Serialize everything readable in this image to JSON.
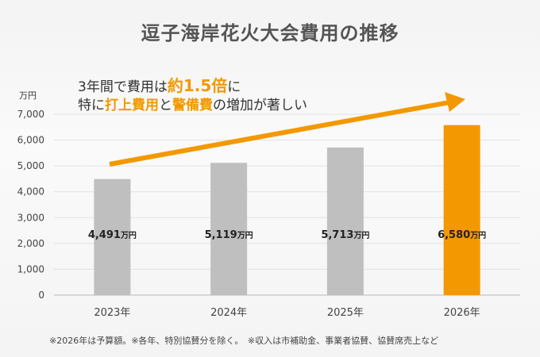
{
  "chart_data": {
    "type": "bar",
    "title": "逗子海岸花火大会費用の推移",
    "ylabel": "万円",
    "categories": [
      "2023年",
      "2024年",
      "2025年",
      "2026年"
    ],
    "values": [
      4491,
      5119,
      5713,
      6580
    ],
    "data_labels": [
      "4,491",
      "5,119",
      "5,713",
      "6,580"
    ],
    "data_label_unit": "万円",
    "ylim": [
      0,
      7000
    ],
    "yticks": [
      0,
      1000,
      2000,
      3000,
      4000,
      5000,
      6000,
      7000
    ],
    "ytick_labels": [
      "0",
      "1,000",
      "2,000",
      "3,000",
      "4,000",
      "5,000",
      "6,000",
      "7,000"
    ],
    "bar_colors": [
      "#bfbfbf",
      "#bfbfbf",
      "#bfbfbf",
      "#f39800"
    ],
    "arrow_color": "#f39800",
    "annotation": {
      "line1": [
        "3年間で費用は",
        "約1.5倍",
        "に"
      ],
      "line2": [
        "特に",
        "打上費用",
        "と",
        "警備費",
        "の増加が著しい"
      ]
    },
    "note": "※2026年は予算額。※各年、特別協賛分を除く。　※収入は市補助金、事業者協賛、協賛席売上など"
  }
}
